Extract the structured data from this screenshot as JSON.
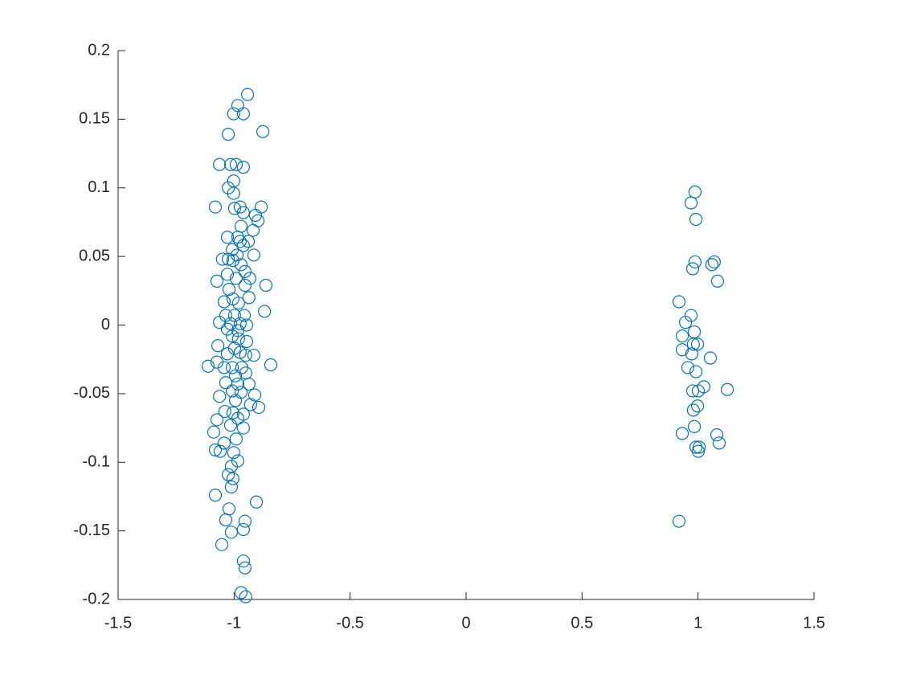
{
  "chart_data": {
    "type": "scatter",
    "color": "#0072BD",
    "marker": "open-circle",
    "xlim": [
      -1.5,
      1.5
    ],
    "xticks": [
      -1.5,
      -1,
      -0.5,
      0,
      0.5,
      1,
      1.5
    ],
    "ylim": [
      -0.2,
      0.2
    ],
    "yticks": [
      -0.2,
      -0.15,
      -0.1,
      -0.05,
      0,
      0.05,
      0.1,
      0.15,
      0.2
    ],
    "x": [
      -0.942,
      -0.984,
      -1.002,
      -0.96,
      -0.876,
      -1.025,
      -1.063,
      -1.015,
      -0.991,
      -0.96,
      -1.002,
      -1.025,
      -1.002,
      -1.081,
      -0.998,
      -0.974,
      -0.883,
      -0.96,
      -0.908,
      -0.897,
      -0.97,
      -0.918,
      -1.029,
      -0.984,
      -0.974,
      -0.939,
      -0.96,
      -1.008,
      -0.987,
      -0.915,
      -1.05,
      -1.025,
      -1.005,
      -0.97,
      -0.953,
      -1.029,
      -1.074,
      -0.991,
      -0.932,
      -0.953,
      -0.863,
      -1.022,
      -0.936,
      -1.043,
      -0.981,
      -1.005,
      -0.869,
      -1.036,
      -0.998,
      -0.956,
      -1.063,
      -1.015,
      -0.974,
      -0.946,
      -1.029,
      -0.984,
      -1.008,
      -0.981,
      -0.946,
      -1.07,
      -0.998,
      -0.974,
      -1.029,
      -0.95,
      -0.915,
      -1.074,
      -1.112,
      -1.043,
      -1.008,
      -0.967,
      -0.842,
      -0.95,
      -0.994,
      -1.036,
      -0.984,
      -0.936,
      -1.008,
      -0.97,
      -0.911,
      -1.063,
      -0.994,
      -0.929,
      -0.894,
      -1.04,
      -1.005,
      -0.96,
      -1.074,
      -0.984,
      -1.015,
      -0.96,
      -1.088,
      -0.991,
      -1.043,
      -1.081,
      -1.06,
      -1.002,
      -0.984,
      -1.012,
      -1.025,
      -1.005,
      -1.012,
      -1.081,
      -0.904,
      -1.022,
      -1.036,
      -0.953,
      -1.012,
      -0.96,
      -1.053,
      -0.96,
      -0.953,
      -0.97,
      -0.95,
      0.987,
      0.97,
      0.991,
      0.987,
      1.07,
      1.06,
      0.977,
      1.084,
      0.918,
      0.97,
      0.946,
      0.984,
      0.932,
      0.98,
      0.998,
      0.932,
      0.973,
      1.053,
      0.956,
      0.991,
      1.025,
      0.977,
      1.001,
      1.126,
      0.998,
      0.98,
      0.984,
      0.932,
      1.081,
      1.091,
      0.991,
      1.001,
      1.005,
      0.918
    ],
    "values": [
      0.168,
      0.16,
      0.154,
      0.154,
      0.141,
      0.139,
      0.117,
      0.117,
      0.117,
      0.115,
      0.105,
      0.1,
      0.096,
      0.086,
      0.085,
      0.086,
      0.086,
      0.082,
      0.08,
      0.076,
      0.072,
      0.069,
      0.064,
      0.064,
      0.061,
      0.061,
      0.058,
      0.055,
      0.051,
      0.051,
      0.048,
      0.048,
      0.047,
      0.044,
      0.039,
      0.037,
      0.032,
      0.034,
      0.034,
      0.029,
      0.029,
      0.026,
      0.02,
      0.017,
      0.016,
      0.019,
      0.01,
      0.007,
      0.007,
      0.007,
      0.002,
      0.001,
      0.001,
      0,
      -0.003,
      -0.004,
      -0.008,
      -0.01,
      -0.012,
      -0.015,
      -0.017,
      -0.02,
      -0.021,
      -0.022,
      -0.022,
      -0.027,
      -0.03,
      -0.031,
      -0.031,
      -0.031,
      -0.029,
      -0.035,
      -0.037,
      -0.042,
      -0.043,
      -0.043,
      -0.048,
      -0.049,
      -0.051,
      -0.052,
      -0.055,
      -0.058,
      -0.06,
      -0.063,
      -0.064,
      -0.065,
      -0.069,
      -0.068,
      -0.073,
      -0.075,
      -0.078,
      -0.083,
      -0.086,
      -0.091,
      -0.092,
      -0.093,
      -0.099,
      -0.103,
      -0.109,
      -0.112,
      -0.118,
      -0.124,
      -0.129,
      -0.134,
      -0.142,
      -0.143,
      -0.151,
      -0.149,
      -0.16,
      -0.172,
      -0.177,
      -0.195,
      -0.198,
      0.097,
      0.089,
      0.077,
      0.046,
      0.046,
      0.044,
      0.041,
      0.032,
      0.017,
      0.007,
      0.002,
      -0.005,
      -0.008,
      -0.014,
      -0.014,
      -0.018,
      -0.021,
      -0.024,
      -0.031,
      -0.034,
      -0.045,
      -0.048,
      -0.048,
      -0.047,
      -0.059,
      -0.062,
      -0.074,
      -0.079,
      -0.08,
      -0.086,
      -0.089,
      -0.092,
      -0.089,
      -0.143
    ]
  }
}
